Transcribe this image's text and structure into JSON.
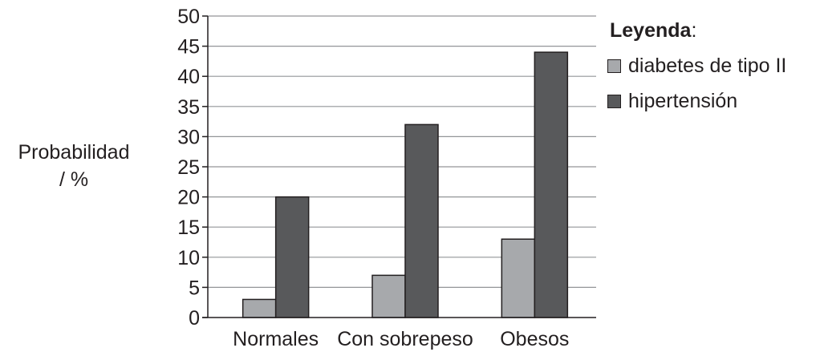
{
  "chart_data": {
    "type": "bar",
    "categories": [
      "Normales",
      "Con sobrepeso",
      "Obesos"
    ],
    "series": [
      {
        "name": "diabetes de tipo II",
        "values": [
          3,
          7,
          13
        ],
        "color": "#a7a9ac"
      },
      {
        "name": "hipertensión",
        "values": [
          20,
          32,
          44
        ],
        "color": "#58595b"
      }
    ],
    "ylabel": [
      "Probabilidad",
      "/ %"
    ],
    "ylim": [
      0,
      50
    ],
    "yticks": [
      0,
      5,
      10,
      15,
      20,
      25,
      30,
      35,
      40,
      45,
      50
    ],
    "grid": true,
    "legend": {
      "title": "Leyenda",
      "title_suffix": ":",
      "placement": "right"
    }
  }
}
